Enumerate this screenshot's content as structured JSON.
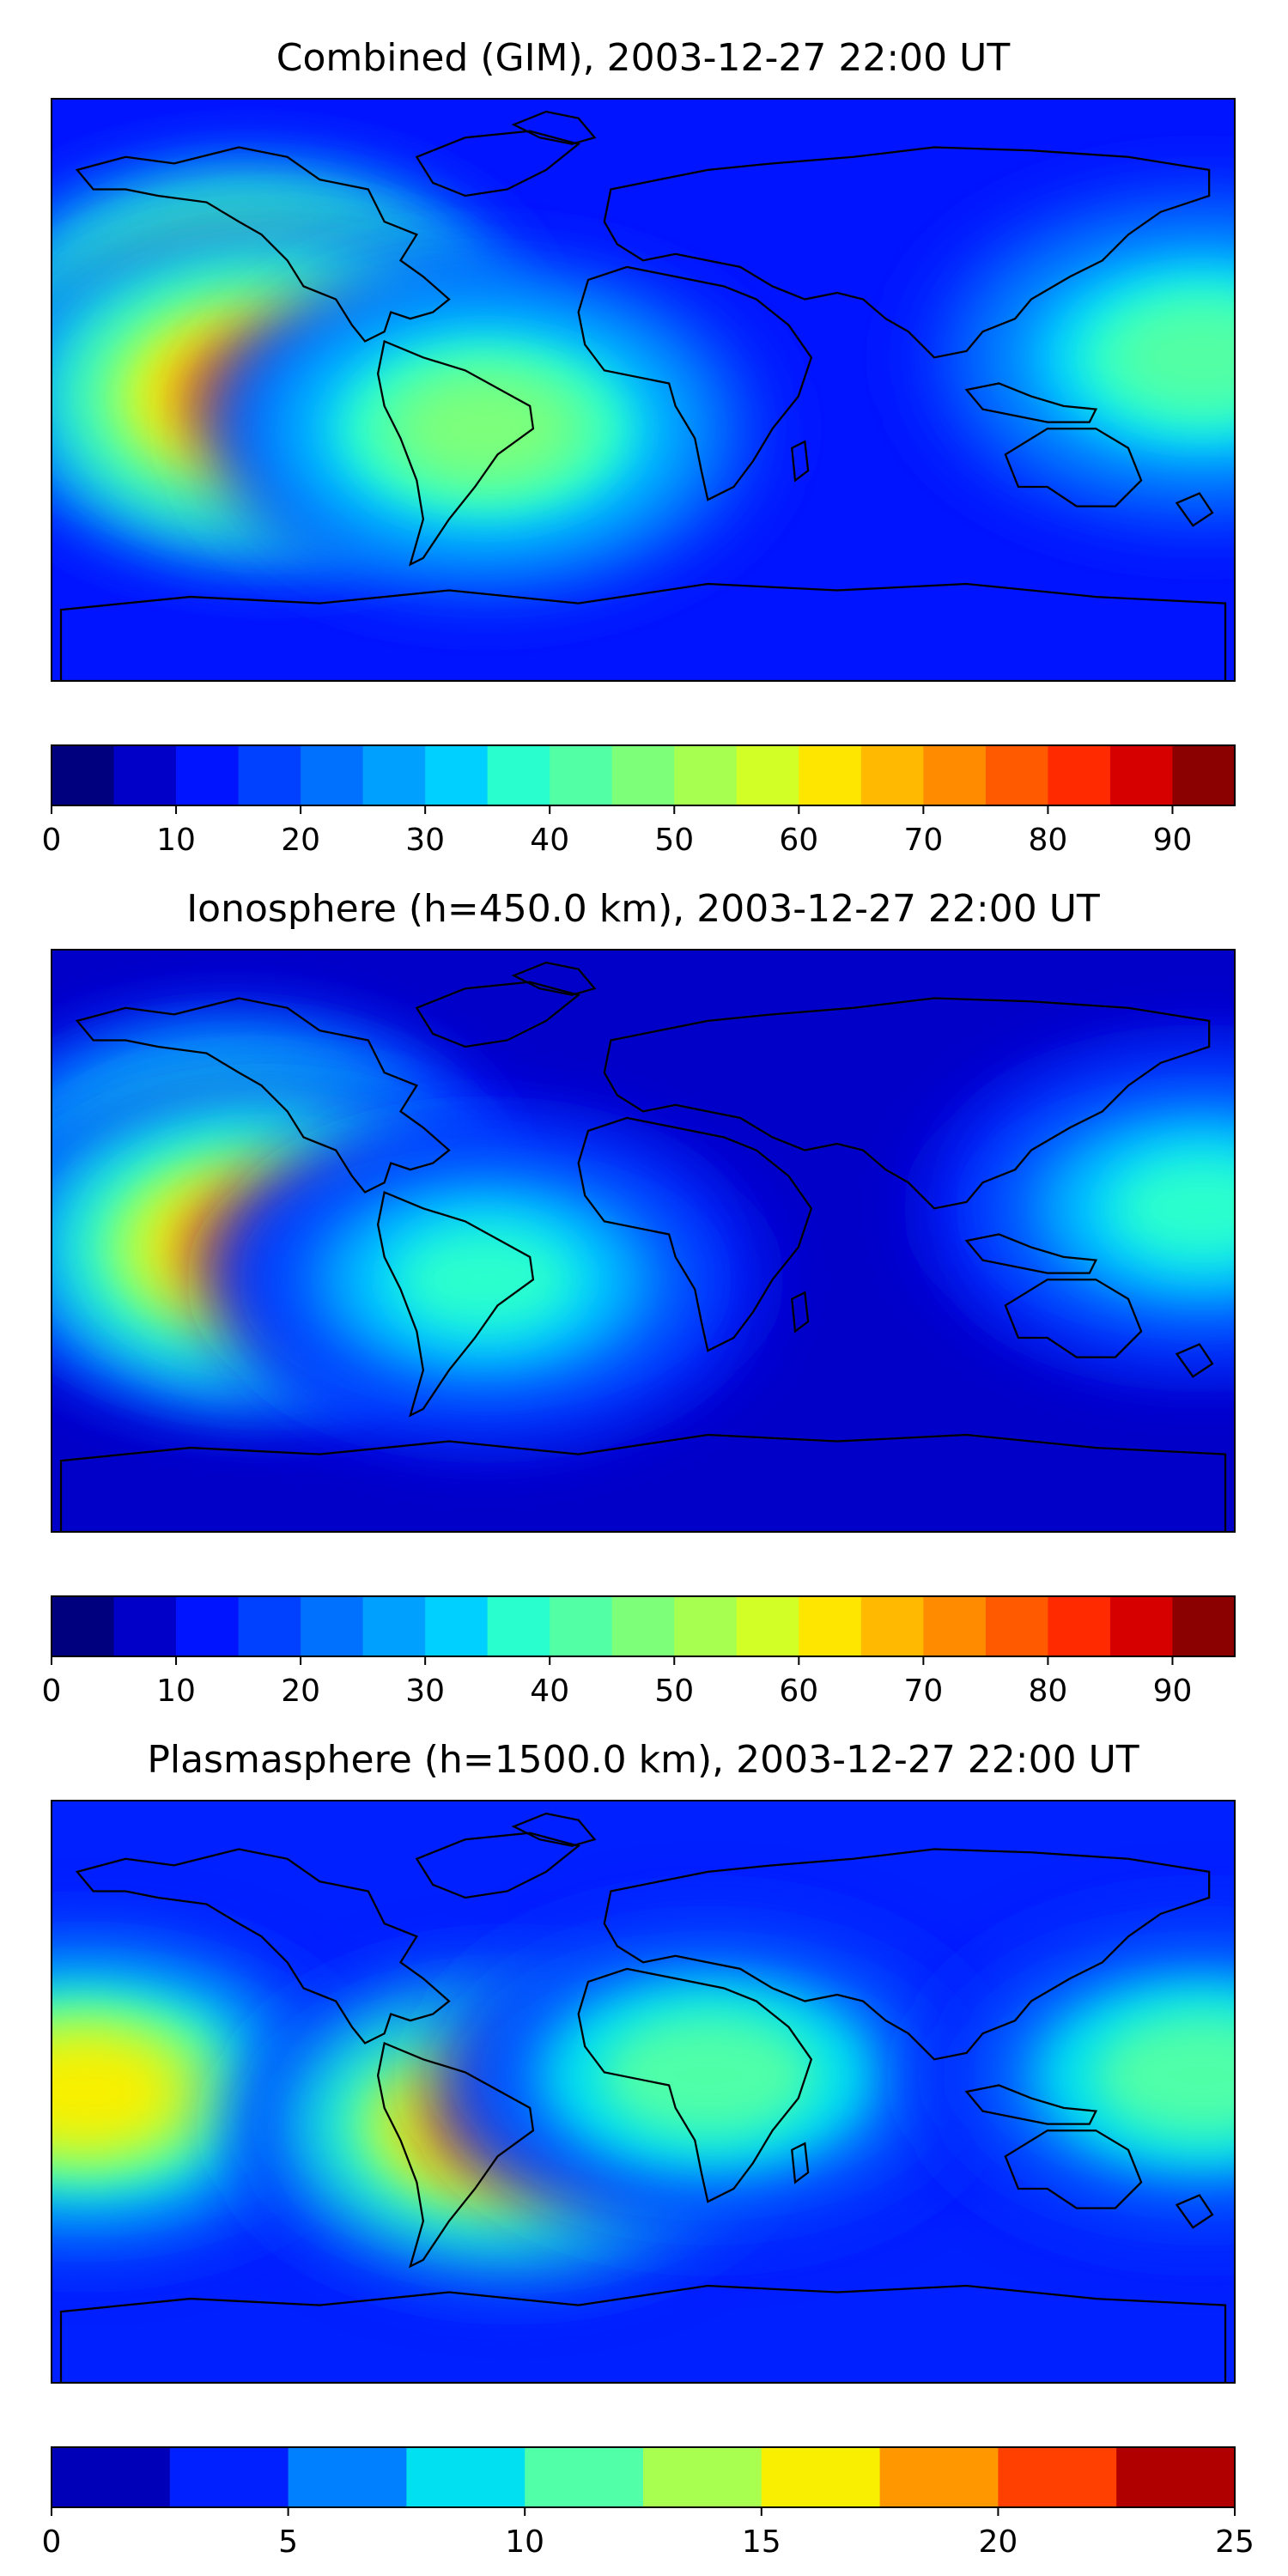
{
  "panels": [
    {
      "title": "Combined (GIM), 2003-12-27 22:00 UT",
      "colorbar": {
        "min": 0,
        "max": 95,
        "step": 5,
        "ticks": [
          0,
          10,
          20,
          30,
          40,
          50,
          60,
          70,
          80,
          90
        ],
        "colors": [
          "#00007f",
          "#0000c8",
          "#0014ff",
          "#0040ff",
          "#0070ff",
          "#00a0ff",
          "#00d0ff",
          "#29ffce",
          "#53ffa4",
          "#7dff7a",
          "#a7ff50",
          "#d1ff26",
          "#ffe600",
          "#ffb900",
          "#ff8c00",
          "#ff5a00",
          "#ff2a00",
          "#d60000",
          "#8b0000"
        ]
      },
      "peaks": [
        {
          "lon": -120,
          "lat": 18,
          "value": 82
        },
        {
          "lon": -112,
          "lat": -2,
          "value": 82
        },
        {
          "lon": -48,
          "lat": -12,
          "value": 52
        },
        {
          "lon": 170,
          "lat": 10,
          "value": 45
        }
      ],
      "base_level": 18
    },
    {
      "title": "Ionosphere  (h=450.0 km), 2003-12-27 22:00 UT",
      "colorbar": {
        "min": 0,
        "max": 95,
        "step": 5,
        "ticks": [
          0,
          10,
          20,
          30,
          40,
          50,
          60,
          70,
          80,
          90
        ],
        "colors": [
          "#00007f",
          "#0000c8",
          "#0014ff",
          "#0040ff",
          "#0070ff",
          "#00a0ff",
          "#00d0ff",
          "#29ffce",
          "#53ffa4",
          "#7dff7a",
          "#a7ff50",
          "#d1ff26",
          "#ffe600",
          "#ffb900",
          "#ff8c00",
          "#ff5a00",
          "#ff2a00",
          "#d60000",
          "#8b0000"
        ]
      },
      "peaks": [
        {
          "lon": -125,
          "lat": 18,
          "value": 62
        },
        {
          "lon": -115,
          "lat": -2,
          "value": 72
        },
        {
          "lon": -48,
          "lat": -12,
          "value": 35
        },
        {
          "lon": 170,
          "lat": 10,
          "value": 38
        }
      ],
      "base_level": 10
    },
    {
      "title": "Plasmasphere (h=1500.0 km), 2003-12-27 22:00 UT",
      "colorbar": {
        "min": 0,
        "max": 25,
        "step": 2.5,
        "ticks": [
          0,
          5,
          10,
          15,
          20,
          25
        ],
        "colors": [
          "#0000b8",
          "#0020ff",
          "#0080ff",
          "#00e0f0",
          "#50ffa8",
          "#a8ff50",
          "#f8f000",
          "#ff9800",
          "#ff4000",
          "#b00000"
        ]
      },
      "peaks": [
        {
          "lon": -170,
          "lat": 0,
          "value": 18
        },
        {
          "lon": -40,
          "lat": -10,
          "value": 19
        },
        {
          "lon": 20,
          "lat": 5,
          "value": 13
        },
        {
          "lon": 170,
          "lat": 5,
          "value": 12
        }
      ],
      "base_level": 4
    }
  ]
}
